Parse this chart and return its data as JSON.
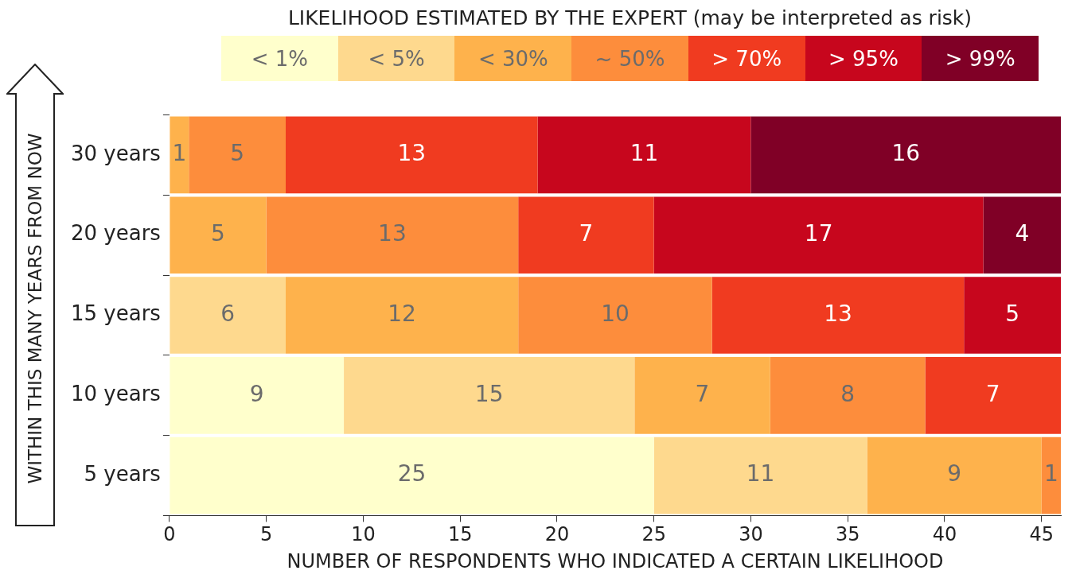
{
  "chart_data": {
    "type": "bar",
    "orientation": "horizontal",
    "stacked": true,
    "legend_title": "LIKELIHOOD ESTIMATED BY THE EXPERT (may be interpreted as risk)",
    "legend": "top",
    "xlabel": "NUMBER OF RESPONDENTS WHO INDICATED A CERTAIN LIKELIHOOD",
    "ylabel": "WITHIN THIS MANY YEARS FROM NOW",
    "categories": [
      "30 years",
      "20 years",
      "15 years",
      "10 years",
      "5 years"
    ],
    "xlim": [
      0,
      46
    ],
    "xticks": [
      0,
      5,
      10,
      15,
      20,
      25,
      30,
      35,
      40,
      45
    ],
    "grid": false,
    "data_labels": true,
    "series": [
      {
        "name": "< 1%",
        "color": "#ffffcc",
        "values": [
          null,
          null,
          null,
          9,
          25
        ]
      },
      {
        "name": "< 5%",
        "color": "#fed98e",
        "values": [
          null,
          null,
          6,
          15,
          11
        ]
      },
      {
        "name": "< 30%",
        "color": "#feb24c",
        "values": [
          1,
          5,
          12,
          7,
          9
        ]
      },
      {
        "name": "~ 50%",
        "color": "#fd8d3c",
        "values": [
          5,
          13,
          10,
          8,
          1
        ]
      },
      {
        "name": "> 70%",
        "color": "#f03b20",
        "values": [
          13,
          7,
          13,
          7,
          null
        ]
      },
      {
        "name": "> 95%",
        "color": "#c7061d",
        "values": [
          11,
          17,
          5,
          null,
          null
        ]
      },
      {
        "name": "> 99%",
        "color": "#800026",
        "values": [
          16,
          4,
          null,
          null,
          null
        ]
      }
    ]
  }
}
